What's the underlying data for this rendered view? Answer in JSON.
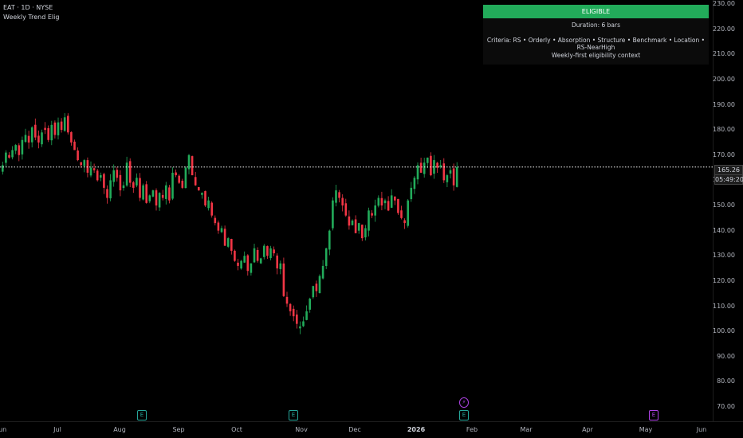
{
  "header": {
    "symbol_line": "EAT · 1D · NYSE",
    "indicator_name": "Weekly Trend Elig"
  },
  "panel": {
    "status": "ELIGIBLE",
    "duration": "Duration: 6 bars",
    "criteria": "Criteria: RS • Orderly • Absorption • Structure • Benchmark • Location • RS-NearHigh",
    "context": "Weekly-first eligibility context",
    "status_color": "#22ab5a"
  },
  "price_scale": {
    "ticks": [
      "230.00",
      "220.00",
      "210.00",
      "200.00",
      "190.00",
      "180.00",
      "170.00",
      "160.00",
      "150.00",
      "140.00",
      "130.00",
      "120.00",
      "110.00",
      "100.00",
      "90.00",
      "80.00",
      "70.00"
    ]
  },
  "time_axis": {
    "ticks": [
      {
        "label": "Jun"
      },
      {
        "label": "Jul"
      },
      {
        "label": "Aug"
      },
      {
        "label": "Sep"
      },
      {
        "label": "Oct"
      },
      {
        "label": "Nov"
      },
      {
        "label": "Dec"
      },
      {
        "label": "2026",
        "bold": true
      },
      {
        "label": "Feb"
      },
      {
        "label": "Mar"
      },
      {
        "label": "Apr"
      },
      {
        "label": "May"
      },
      {
        "label": "Jun"
      }
    ]
  },
  "last_price": {
    "price": "165.26",
    "countdown": "05:49:20",
    "value": 165.26
  },
  "events": [
    {
      "icon": "earnings-icon",
      "glyph": "E",
      "color": "#26a69a"
    },
    {
      "icon": "earnings-icon",
      "glyph": "E",
      "color": "#26a69a"
    },
    {
      "icon": "earnings-icon",
      "glyph": "E",
      "color": "#26a69a"
    },
    {
      "icon": "split-icon",
      "glyph": "⚡",
      "color": "#b043e8"
    },
    {
      "icon": "earnings-icon",
      "glyph": "E",
      "color": "#b043e8"
    }
  ],
  "colors": {
    "up": "#22ab5a",
    "down": "#f23645",
    "background": "#000000"
  },
  "chart_data": {
    "type": "candlestick",
    "ylim": [
      70,
      230
    ],
    "closes": [
      166,
      171,
      169,
      172,
      174,
      170,
      176,
      178,
      175,
      181,
      177,
      175,
      179,
      180,
      176,
      182,
      178,
      183,
      180,
      185,
      179,
      175,
      172,
      168,
      166,
      168,
      163,
      165,
      164,
      160,
      162,
      157,
      153,
      160,
      164,
      161,
      156,
      158,
      167,
      159,
      157,
      161,
      153,
      158,
      151,
      154,
      156,
      150,
      155,
      153,
      158,
      152,
      163,
      162,
      159,
      157,
      165,
      170,
      162,
      158,
      156,
      155,
      150,
      152,
      146,
      143,
      140,
      141,
      134,
      137,
      132,
      128,
      126,
      128,
      130,
      124,
      127,
      133,
      128,
      129,
      134,
      130,
      133,
      131,
      125,
      127,
      114,
      111,
      108,
      106,
      103,
      102,
      104,
      108,
      113,
      118,
      116,
      122,
      126,
      133,
      140,
      152,
      156,
      153,
      150,
      146,
      142,
      144,
      139,
      143,
      137,
      141,
      148,
      146,
      150,
      153,
      150,
      152,
      148,
      154,
      152,
      147,
      145,
      143,
      152,
      157,
      161,
      166,
      163,
      167,
      169,
      162,
      168,
      165,
      166,
      160,
      162,
      164,
      158,
      165.26
    ],
    "last_price": 165.26
  }
}
